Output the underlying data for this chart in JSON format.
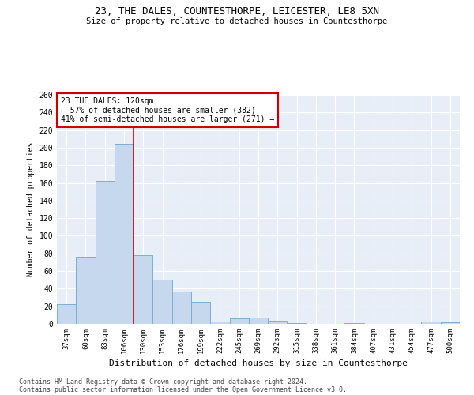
{
  "title1": "23, THE DALES, COUNTESTHORPE, LEICESTER, LE8 5XN",
  "title2": "Size of property relative to detached houses in Countesthorpe",
  "xlabel": "Distribution of detached houses by size in Countesthorpe",
  "ylabel": "Number of detached properties",
  "bar_color": "#c5d8ee",
  "bar_edge_color": "#7aafd4",
  "background_color": "#e8eef8",
  "grid_color": "#ffffff",
  "annotation_line_color": "#cc0000",
  "annotation_box_color": "#cc0000",
  "footer1": "Contains HM Land Registry data © Crown copyright and database right 2024.",
  "footer2": "Contains public sector information licensed under the Open Government Licence v3.0.",
  "annotation_line1": "23 THE DALES: 120sqm",
  "annotation_line2": "← 57% of detached houses are smaller (382)",
  "annotation_line3": "41% of semi-detached houses are larger (271) →",
  "property_bin_index": 3,
  "categories": [
    "37sqm",
    "60sqm",
    "83sqm",
    "106sqm",
    "130sqm",
    "153sqm",
    "176sqm",
    "199sqm",
    "222sqm",
    "245sqm",
    "269sqm",
    "292sqm",
    "315sqm",
    "338sqm",
    "361sqm",
    "384sqm",
    "407sqm",
    "431sqm",
    "454sqm",
    "477sqm",
    "500sqm"
  ],
  "values": [
    22,
    76,
    162,
    204,
    78,
    50,
    37,
    25,
    3,
    6,
    7,
    4,
    1,
    0,
    0,
    1,
    0,
    0,
    0,
    3,
    2
  ],
  "ylim": [
    0,
    260
  ],
  "yticks": [
    0,
    20,
    40,
    60,
    80,
    100,
    120,
    140,
    160,
    180,
    200,
    220,
    240,
    260
  ]
}
